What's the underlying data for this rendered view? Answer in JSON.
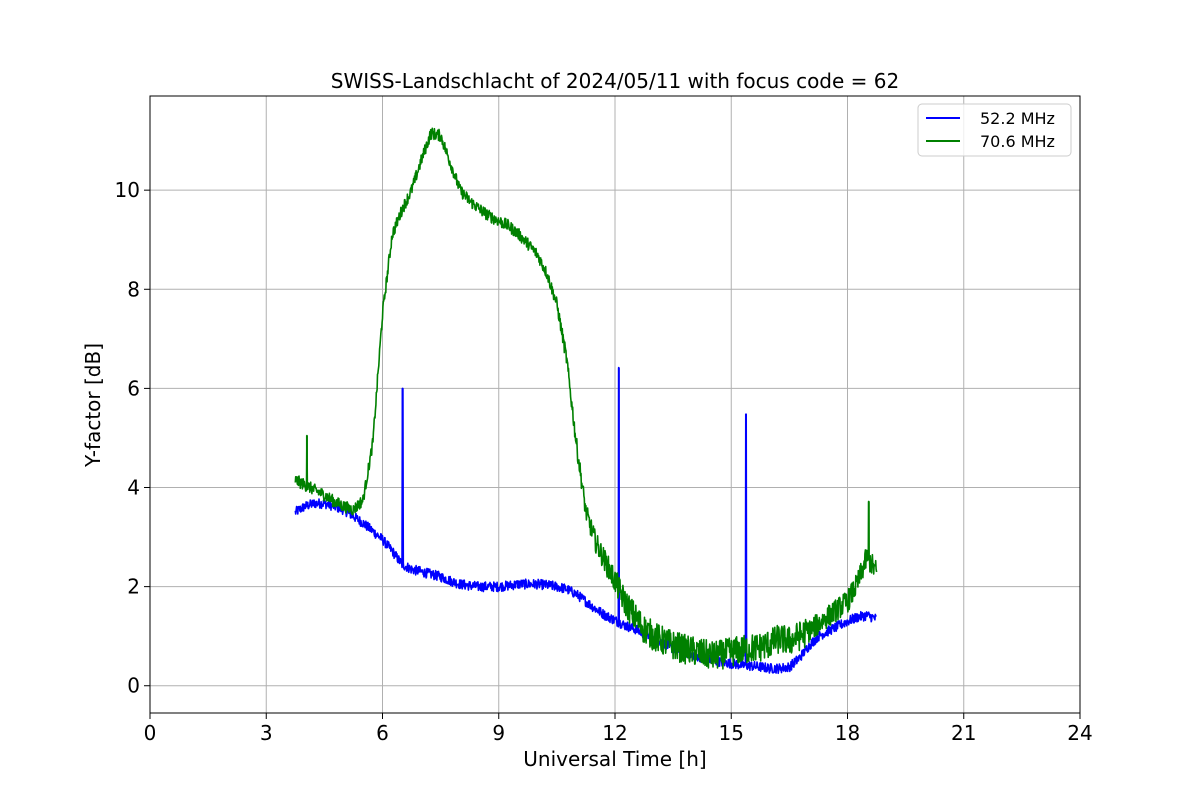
{
  "chart_data": {
    "type": "line",
    "title": "SWISS-Landschlacht of 2024/05/11 with focus code = 62",
    "xlabel": "Universal Time [h]",
    "ylabel": "Y-factor [dB]",
    "xlim": [
      0,
      24
    ],
    "ylim": [
      -0.55,
      11.9
    ],
    "xticks": [
      0,
      3,
      6,
      9,
      12,
      15,
      18,
      21,
      24
    ],
    "yticks": [
      0,
      2,
      4,
      6,
      8,
      10
    ],
    "grid": true,
    "legend_position": "top-right",
    "series": [
      {
        "name": "52.2 MHz",
        "color": "#0000ff",
        "x": [
          3.75,
          4.0,
          4.25,
          4.5,
          4.75,
          5.0,
          5.25,
          5.5,
          5.75,
          6.0,
          6.25,
          6.5,
          6.75,
          7.0,
          7.25,
          7.5,
          7.75,
          8.0,
          8.25,
          8.5,
          8.75,
          9.0,
          9.25,
          9.5,
          9.75,
          10.0,
          10.25,
          10.5,
          10.75,
          11.0,
          11.25,
          11.5,
          11.75,
          12.0,
          12.25,
          12.5,
          12.75,
          13.0,
          13.25,
          13.5,
          13.75,
          14.0,
          14.25,
          14.5,
          14.75,
          15.0,
          15.25,
          15.5,
          15.75,
          16.0,
          16.25,
          16.5,
          16.75,
          17.0,
          17.25,
          17.5,
          17.75,
          18.0,
          18.25,
          18.5,
          18.75
        ],
        "values": [
          3.5,
          3.62,
          3.68,
          3.68,
          3.62,
          3.55,
          3.42,
          3.28,
          3.12,
          2.95,
          2.72,
          2.45,
          2.35,
          2.3,
          2.25,
          2.2,
          2.12,
          2.05,
          2.02,
          2.0,
          2.0,
          2.0,
          2.02,
          2.05,
          2.05,
          2.05,
          2.03,
          2.0,
          1.95,
          1.85,
          1.7,
          1.55,
          1.42,
          1.32,
          1.22,
          1.15,
          1.05,
          0.95,
          0.85,
          0.75,
          0.67,
          0.62,
          0.57,
          0.52,
          0.48,
          0.45,
          0.42,
          0.4,
          0.38,
          0.35,
          0.35,
          0.38,
          0.55,
          0.8,
          1.0,
          1.1,
          1.2,
          1.3,
          1.38,
          1.42,
          1.35
        ],
        "spikes": [
          {
            "x": 6.52,
            "y": 6.0
          },
          {
            "x": 12.1,
            "y": 6.42
          },
          {
            "x": 15.38,
            "y": 5.48
          }
        ]
      },
      {
        "name": "70.6 MHz",
        "color": "#008000",
        "x": [
          3.75,
          4.0,
          4.25,
          4.5,
          4.75,
          5.0,
          5.25,
          5.5,
          5.75,
          6.0,
          6.25,
          6.5,
          6.75,
          7.0,
          7.25,
          7.5,
          7.75,
          8.0,
          8.25,
          8.5,
          8.75,
          9.0,
          9.25,
          9.5,
          9.75,
          10.0,
          10.25,
          10.5,
          10.75,
          11.0,
          11.25,
          11.5,
          11.75,
          12.0,
          12.25,
          12.5,
          12.75,
          13.0,
          13.25,
          13.5,
          13.75,
          14.0,
          14.25,
          14.5,
          14.75,
          15.0,
          15.25,
          15.5,
          15.75,
          16.0,
          16.25,
          16.5,
          16.75,
          17.0,
          17.25,
          17.5,
          17.75,
          18.0,
          18.25,
          18.5,
          18.75
        ],
        "values": [
          4.15,
          4.05,
          3.95,
          3.85,
          3.72,
          3.62,
          3.55,
          3.75,
          4.9,
          7.5,
          9.1,
          9.6,
          10.0,
          10.6,
          11.15,
          11.1,
          10.55,
          10.0,
          9.78,
          9.62,
          9.48,
          9.38,
          9.28,
          9.12,
          8.92,
          8.7,
          8.3,
          7.7,
          6.6,
          4.9,
          3.5,
          2.9,
          2.5,
          2.12,
          1.7,
          1.4,
          1.15,
          1.0,
          0.9,
          0.82,
          0.75,
          0.7,
          0.65,
          0.6,
          0.63,
          0.68,
          0.72,
          0.75,
          0.78,
          0.85,
          0.95,
          0.9,
          1.0,
          1.1,
          1.25,
          1.4,
          1.55,
          1.7,
          2.05,
          2.6,
          2.3
        ],
        "spikes": [
          {
            "x": 4.05,
            "y": 5.05
          },
          {
            "x": 18.55,
            "y": 3.72
          }
        ]
      }
    ]
  }
}
